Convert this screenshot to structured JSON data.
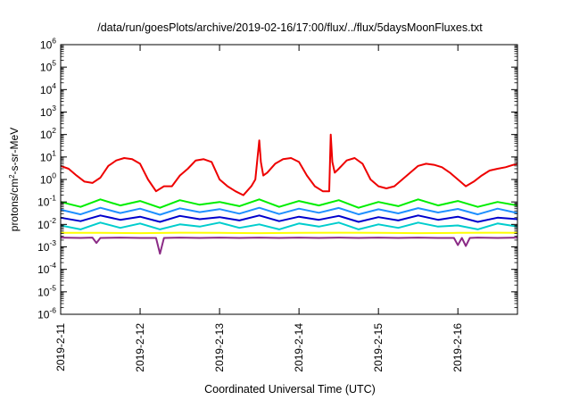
{
  "chart_data": {
    "type": "line",
    "title": "/data/run/goesPlots/archive/2019-02-16/17:00/flux/../flux/5daysMoonFluxes.txt",
    "xlabel": "Coordinated Universal Time (UTC)",
    "ylabel": {
      "pre": "protons/cm",
      "sup": "2",
      "post": "-s-sr-MeV"
    },
    "yscale": "log",
    "ylim": [
      1e-06,
      1000000.0
    ],
    "y_ticks": [
      {
        "value": 1e-06,
        "base": "10",
        "exp": "-6"
      },
      {
        "value": 1e-05,
        "base": "10",
        "exp": "-5"
      },
      {
        "value": 0.0001,
        "base": "10",
        "exp": "-4"
      },
      {
        "value": 0.001,
        "base": "10",
        "exp": "-3"
      },
      {
        "value": 0.01,
        "base": "10",
        "exp": "-2"
      },
      {
        "value": 0.1,
        "base": "10",
        "exp": "-1"
      },
      {
        "value": 1,
        "base": "10",
        "exp": "0"
      },
      {
        "value": 10,
        "base": "10",
        "exp": "1"
      },
      {
        "value": 100,
        "base": "10",
        "exp": "2"
      },
      {
        "value": 1000,
        "base": "10",
        "exp": "3"
      },
      {
        "value": 10000,
        "base": "10",
        "exp": "4"
      },
      {
        "value": 100000,
        "base": "10",
        "exp": "5"
      },
      {
        "value": 1000000,
        "base": "10",
        "exp": "6"
      }
    ],
    "xlim": [
      0,
      5.75
    ],
    "x_ticks": [
      {
        "value": 0,
        "label": "2019-2-11"
      },
      {
        "value": 1,
        "label": "2019-2-12"
      },
      {
        "value": 2,
        "label": "2019-2-13"
      },
      {
        "value": 3,
        "label": "2019-2-14"
      },
      {
        "value": 4,
        "label": "2019-2-15"
      },
      {
        "value": 5,
        "label": "2019-2-16"
      }
    ],
    "grid": false,
    "series": [
      {
        "color": "#8b2b86",
        "x": [
          0.0,
          0.25,
          0.4,
          0.45,
          0.5,
          0.75,
          1.0,
          1.2,
          1.25,
          1.3,
          1.5,
          1.75,
          2.0,
          2.25,
          2.5,
          2.75,
          3.0,
          3.25,
          3.5,
          3.75,
          4.0,
          4.25,
          4.5,
          4.75,
          4.95,
          5.0,
          5.05,
          5.1,
          5.15,
          5.25,
          5.5,
          5.75
        ],
        "y": [
          0.0026,
          0.0025,
          0.0026,
          0.0015,
          0.0025,
          0.0026,
          0.0025,
          0.0025,
          0.0005,
          0.0025,
          0.0026,
          0.0025,
          0.0026,
          0.0025,
          0.0026,
          0.0025,
          0.0026,
          0.0025,
          0.0026,
          0.0025,
          0.0026,
          0.0025,
          0.0026,
          0.0025,
          0.0025,
          0.0012,
          0.0025,
          0.0011,
          0.0025,
          0.0026,
          0.0025,
          0.0026
        ]
      },
      {
        "color": "#ffff00",
        "x": [
          0.0,
          0.5,
          1.0,
          1.5,
          2.0,
          2.5,
          3.0,
          3.5,
          4.0,
          4.5,
          5.0,
          5.5,
          5.75
        ],
        "y": [
          0.0042,
          0.0042,
          0.0041,
          0.0043,
          0.0042,
          0.0041,
          0.0042,
          0.0043,
          0.0042,
          0.0041,
          0.0042,
          0.0043,
          0.0042
        ]
      },
      {
        "color": "#00cdcd",
        "x": [
          0.0,
          0.25,
          0.5,
          0.75,
          1.0,
          1.25,
          1.5,
          1.75,
          2.0,
          2.25,
          2.5,
          2.75,
          3.0,
          3.25,
          3.5,
          3.75,
          4.0,
          4.25,
          4.5,
          4.75,
          5.0,
          5.25,
          5.5,
          5.75
        ],
        "y": [
          0.009,
          0.006,
          0.012,
          0.007,
          0.011,
          0.006,
          0.01,
          0.008,
          0.012,
          0.007,
          0.01,
          0.006,
          0.011,
          0.008,
          0.012,
          0.006,
          0.01,
          0.007,
          0.012,
          0.008,
          0.009,
          0.006,
          0.011,
          0.008
        ]
      },
      {
        "color": "#0000cd",
        "x": [
          0.0,
          0.25,
          0.5,
          0.75,
          1.0,
          1.25,
          1.5,
          1.75,
          2.0,
          2.25,
          2.5,
          2.75,
          3.0,
          3.25,
          3.5,
          3.75,
          4.0,
          4.25,
          4.5,
          4.75,
          5.0,
          5.25,
          5.5,
          5.75
        ],
        "y": [
          0.02,
          0.014,
          0.025,
          0.016,
          0.022,
          0.013,
          0.024,
          0.017,
          0.021,
          0.015,
          0.025,
          0.014,
          0.022,
          0.016,
          0.024,
          0.013,
          0.021,
          0.015,
          0.025,
          0.016,
          0.022,
          0.013,
          0.02,
          0.017
        ]
      },
      {
        "color": "#1e90ff",
        "x": [
          0.0,
          0.25,
          0.5,
          0.75,
          1.0,
          1.25,
          1.5,
          1.75,
          2.0,
          2.25,
          2.5,
          2.75,
          3.0,
          3.25,
          3.5,
          3.75,
          4.0,
          4.25,
          4.5,
          4.75,
          5.0,
          5.25,
          5.5,
          5.75
        ],
        "y": [
          0.045,
          0.028,
          0.055,
          0.032,
          0.05,
          0.027,
          0.052,
          0.035,
          0.048,
          0.03,
          0.055,
          0.029,
          0.05,
          0.033,
          0.054,
          0.028,
          0.047,
          0.031,
          0.053,
          0.034,
          0.049,
          0.028,
          0.05,
          0.032
        ]
      },
      {
        "color": "#00ee00",
        "x": [
          0.0,
          0.25,
          0.5,
          0.75,
          1.0,
          1.25,
          1.5,
          1.75,
          2.0,
          2.25,
          2.5,
          2.75,
          3.0,
          3.25,
          3.5,
          3.75,
          4.0,
          4.25,
          4.5,
          4.75,
          5.0,
          5.25,
          5.5,
          5.75
        ],
        "y": [
          0.1,
          0.06,
          0.13,
          0.07,
          0.11,
          0.055,
          0.12,
          0.075,
          0.1,
          0.065,
          0.13,
          0.06,
          0.11,
          0.07,
          0.12,
          0.055,
          0.1,
          0.065,
          0.13,
          0.07,
          0.11,
          0.06,
          0.1,
          0.07
        ]
      },
      {
        "color": "#ee0000",
        "x": [
          0.0,
          0.1,
          0.2,
          0.3,
          0.4,
          0.5,
          0.6,
          0.7,
          0.8,
          0.9,
          1.0,
          1.1,
          1.2,
          1.3,
          1.4,
          1.5,
          1.6,
          1.7,
          1.8,
          1.9,
          2.0,
          2.1,
          2.2,
          2.3,
          2.4,
          2.45,
          2.5,
          2.52,
          2.55,
          2.6,
          2.7,
          2.8,
          2.9,
          3.0,
          3.1,
          3.2,
          3.3,
          3.38,
          3.4,
          3.42,
          3.45,
          3.5,
          3.6,
          3.7,
          3.8,
          3.9,
          4.0,
          4.1,
          4.2,
          4.3,
          4.4,
          4.5,
          4.6,
          4.7,
          4.8,
          4.9,
          5.0,
          5.1,
          5.2,
          5.3,
          5.4,
          5.5,
          5.6,
          5.7,
          5.75
        ],
        "y": [
          4.0,
          3.0,
          1.5,
          0.8,
          0.7,
          1.2,
          4.0,
          7.0,
          9.0,
          8.0,
          5.0,
          1.0,
          0.3,
          0.5,
          0.5,
          1.5,
          3.0,
          7.0,
          8.0,
          6.0,
          1.0,
          0.5,
          0.3,
          0.2,
          0.5,
          1.0,
          55.0,
          6.0,
          1.5,
          2.0,
          5.0,
          8.0,
          9.0,
          6.0,
          1.5,
          0.5,
          0.3,
          0.3,
          100.0,
          6.0,
          2.0,
          3.0,
          7.0,
          9.0,
          5.0,
          1.0,
          0.5,
          0.4,
          0.5,
          1.0,
          2.0,
          4.0,
          5.0,
          4.5,
          3.5,
          2.0,
          1.0,
          0.5,
          0.8,
          1.5,
          2.5,
          3.0,
          3.5,
          4.5,
          5.0
        ]
      }
    ]
  }
}
